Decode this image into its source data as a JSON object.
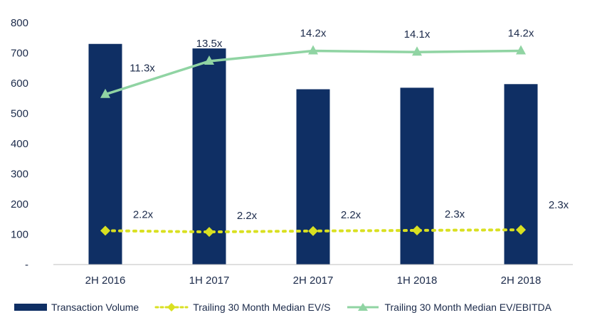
{
  "chart_data": {
    "type": "bar",
    "categories": [
      "2H 2016",
      "1H 2017",
      "2H 2017",
      "1H 2018",
      "2H 2018"
    ],
    "ylim": [
      0,
      800
    ],
    "yticks": [
      {
        "value": 0,
        "label": "-"
      },
      {
        "value": 100,
        "label": "100"
      },
      {
        "value": 200,
        "label": "200"
      },
      {
        "value": 300,
        "label": "300"
      },
      {
        "value": 400,
        "label": "400"
      },
      {
        "value": 500,
        "label": "500"
      },
      {
        "value": 600,
        "label": "600"
      },
      {
        "value": 700,
        "label": "700"
      },
      {
        "value": 800,
        "label": "800"
      }
    ],
    "series": [
      {
        "name": "Transaction Volume",
        "kind": "bar",
        "values": [
          730,
          715,
          580,
          585,
          597
        ],
        "color": "#0f2f64"
      },
      {
        "name": "Trailing 30 Month Median EV/S",
        "kind": "line-dotted",
        "values": [
          112,
          108,
          111,
          113,
          115
        ],
        "labels": [
          "2.2x",
          "2.2x",
          "2.2x",
          "2.3x",
          "2.3x"
        ],
        "color": "#d9e021"
      },
      {
        "name": "Trailing 30 Month Median EV/EBITDA",
        "kind": "line",
        "values": [
          563,
          673,
          707,
          703,
          707
        ],
        "labels": [
          "11.3x",
          "13.5x",
          "14.2x",
          "14.1x",
          "14.2x"
        ],
        "color": "#90d4a3"
      }
    ],
    "legend_position": "bottom",
    "grid": false
  }
}
